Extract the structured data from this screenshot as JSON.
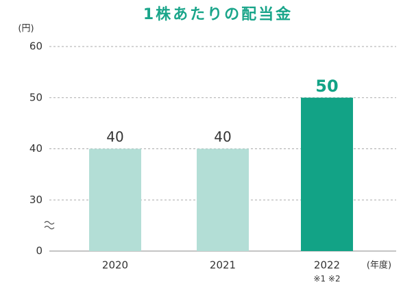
{
  "chart_data": {
    "type": "bar",
    "title": "1株あたりの配当金",
    "y_unit": "(円)",
    "x_unit": "(年度)",
    "categories": [
      "2020",
      "2021",
      "2022"
    ],
    "values": [
      40,
      40,
      50
    ],
    "colors": [
      "#b3ded6",
      "#b3ded6",
      "#12a386"
    ],
    "label_colors": [
      "#333333",
      "#333333",
      "#12a386"
    ],
    "category_notes": [
      null,
      null,
      "※1 ※2"
    ],
    "ylim": [
      0,
      60
    ],
    "yticks": [
      0,
      30,
      40,
      50,
      60
    ],
    "axis_break": true,
    "grid": true
  }
}
